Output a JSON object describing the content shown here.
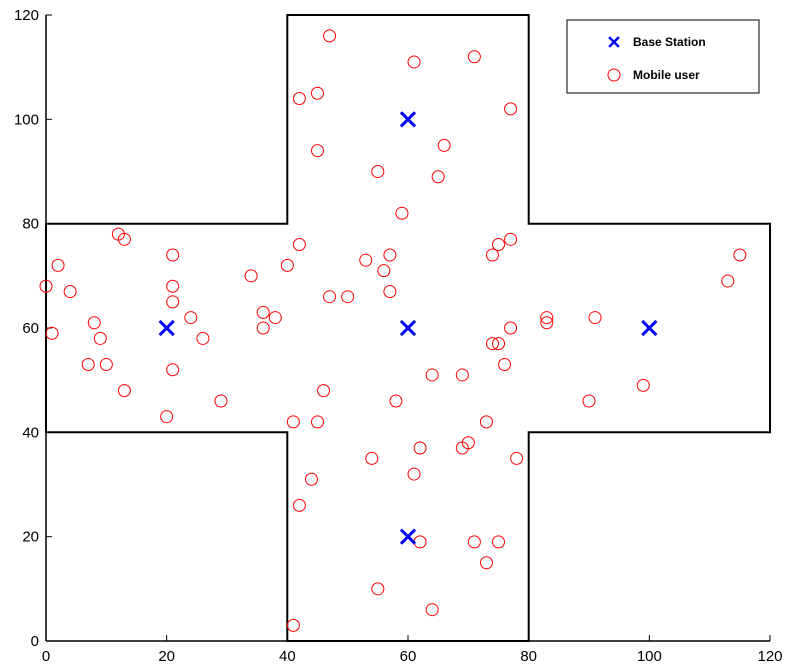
{
  "chart_data": {
    "type": "scatter",
    "title": "",
    "xlabel": "",
    "ylabel": "",
    "xlim": [
      0,
      120
    ],
    "ylim": [
      0,
      120
    ],
    "x_ticks": [
      0,
      20,
      40,
      60,
      80,
      100,
      120
    ],
    "y_ticks": [
      0,
      20,
      40,
      60,
      80,
      100,
      120
    ],
    "grid": false,
    "legend_position": "top-right",
    "region_outline": [
      [
        0,
        80
      ],
      [
        40,
        80
      ],
      [
        40,
        120
      ],
      [
        80,
        120
      ],
      [
        80,
        80
      ],
      [
        120,
        80
      ],
      [
        120,
        40
      ],
      [
        80,
        40
      ],
      [
        80,
        0
      ],
      [
        40,
        0
      ],
      [
        40,
        40
      ],
      [
        0,
        40
      ]
    ],
    "series": [
      {
        "name": "Base Station",
        "marker": "x",
        "color": "#0000ff",
        "points": [
          [
            20,
            60
          ],
          [
            60,
            60
          ],
          [
            100,
            60
          ],
          [
            60,
            100
          ],
          [
            60,
            20
          ]
        ]
      },
      {
        "name": "Mobile user",
        "marker": "o",
        "color": "#ff0000",
        "points": [
          [
            47,
            116
          ],
          [
            71,
            112
          ],
          [
            61,
            111
          ],
          [
            42,
            104
          ],
          [
            45,
            105
          ],
          [
            77,
            102
          ],
          [
            45,
            94
          ],
          [
            66,
            95
          ],
          [
            65,
            89
          ],
          [
            55,
            90
          ],
          [
            59,
            82
          ],
          [
            12,
            78
          ],
          [
            13,
            77
          ],
          [
            42,
            76
          ],
          [
            75,
            76
          ],
          [
            77,
            77
          ],
          [
            74,
            74
          ],
          [
            21,
            74
          ],
          [
            2,
            72
          ],
          [
            40,
            72
          ],
          [
            53,
            73
          ],
          [
            56,
            71
          ],
          [
            57,
            74
          ],
          [
            34,
            70
          ],
          [
            113,
            69
          ],
          [
            115,
            74
          ],
          [
            0,
            68
          ],
          [
            21,
            68
          ],
          [
            4,
            67
          ],
          [
            47,
            66
          ],
          [
            50,
            66
          ],
          [
            57,
            67
          ],
          [
            21,
            65
          ],
          [
            24,
            62
          ],
          [
            36,
            63
          ],
          [
            38,
            62
          ],
          [
            83,
            62
          ],
          [
            91,
            62
          ],
          [
            83,
            61
          ],
          [
            8,
            61
          ],
          [
            1,
            59
          ],
          [
            36,
            60
          ],
          [
            77,
            60
          ],
          [
            9,
            58
          ],
          [
            26,
            58
          ],
          [
            74,
            57
          ],
          [
            75,
            57
          ],
          [
            7,
            53
          ],
          [
            10,
            53
          ],
          [
            21,
            52
          ],
          [
            76,
            53
          ],
          [
            64,
            51
          ],
          [
            69,
            51
          ],
          [
            13,
            48
          ],
          [
            46,
            48
          ],
          [
            99,
            49
          ],
          [
            29,
            46
          ],
          [
            58,
            46
          ],
          [
            90,
            46
          ],
          [
            20,
            43
          ],
          [
            41,
            42
          ],
          [
            45,
            42
          ],
          [
            73,
            42
          ],
          [
            70,
            38
          ],
          [
            69,
            37
          ],
          [
            62,
            37
          ],
          [
            54,
            35
          ],
          [
            78,
            35
          ],
          [
            61,
            32
          ],
          [
            44,
            31
          ],
          [
            42,
            26
          ],
          [
            62,
            19
          ],
          [
            71,
            19
          ],
          [
            75,
            19
          ],
          [
            73,
            15
          ],
          [
            55,
            10
          ],
          [
            64,
            6
          ],
          [
            41,
            3
          ]
        ]
      }
    ]
  }
}
